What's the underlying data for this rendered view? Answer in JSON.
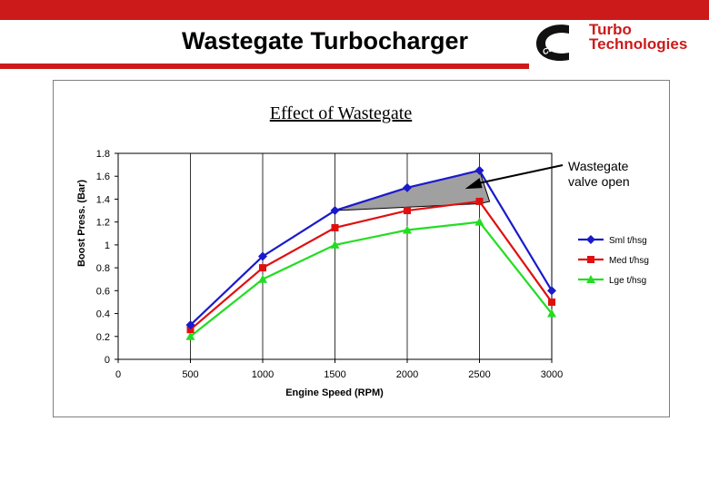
{
  "header": {
    "title": "Wastegate Turbocharger",
    "brand_line1": "Turbo",
    "brand_line2": "Technologies",
    "brand_mark": "Cummins",
    "band_color": "#cc1a1a"
  },
  "chart_data": {
    "type": "line",
    "title": "Effect of Wastegate",
    "xlabel": "Engine Speed (RPM)",
    "ylabel": "Boost Press. (Bar)",
    "xlim": [
      0,
      3000
    ],
    "ylim": [
      0,
      1.8
    ],
    "xticks": [
      "0",
      "500",
      "1000",
      "1500",
      "2000",
      "2500",
      "3000"
    ],
    "yticks": [
      "0",
      "0.2",
      "0.4",
      "0.6",
      "0.8",
      "1",
      "1.2",
      "1.4",
      "1.6",
      "1.8"
    ],
    "grid": "vertical",
    "legend_position": "right",
    "x": [
      500,
      1000,
      1500,
      2000,
      2500,
      3000
    ],
    "series": [
      {
        "name": "Sml t/hsg",
        "values": [
          0.3,
          0.9,
          1.3,
          1.5,
          1.65,
          0.6
        ],
        "color": "#1a1acc",
        "marker": "diamond"
      },
      {
        "name": "Med t/hsg",
        "values": [
          0.26,
          0.8,
          1.15,
          1.3,
          1.38,
          0.5
        ],
        "color": "#e01010",
        "marker": "square"
      },
      {
        "name": "Lge t/hsg",
        "values": [
          0.2,
          0.7,
          1.0,
          1.13,
          1.2,
          0.4
        ],
        "color": "#22dd22",
        "marker": "triangle"
      }
    ],
    "annotation": {
      "line1": "Wastegate",
      "line2": "valve open",
      "shaded_region_color": "#a0a0a0",
      "shaded_region_points": [
        [
          1500,
          1.3
        ],
        [
          2000,
          1.5
        ],
        [
          2500,
          1.65
        ],
        [
          2570,
          1.38
        ],
        [
          2500,
          1.36
        ],
        [
          1500,
          1.3
        ]
      ],
      "arrow_target": [
        2400,
        1.49
      ]
    }
  }
}
